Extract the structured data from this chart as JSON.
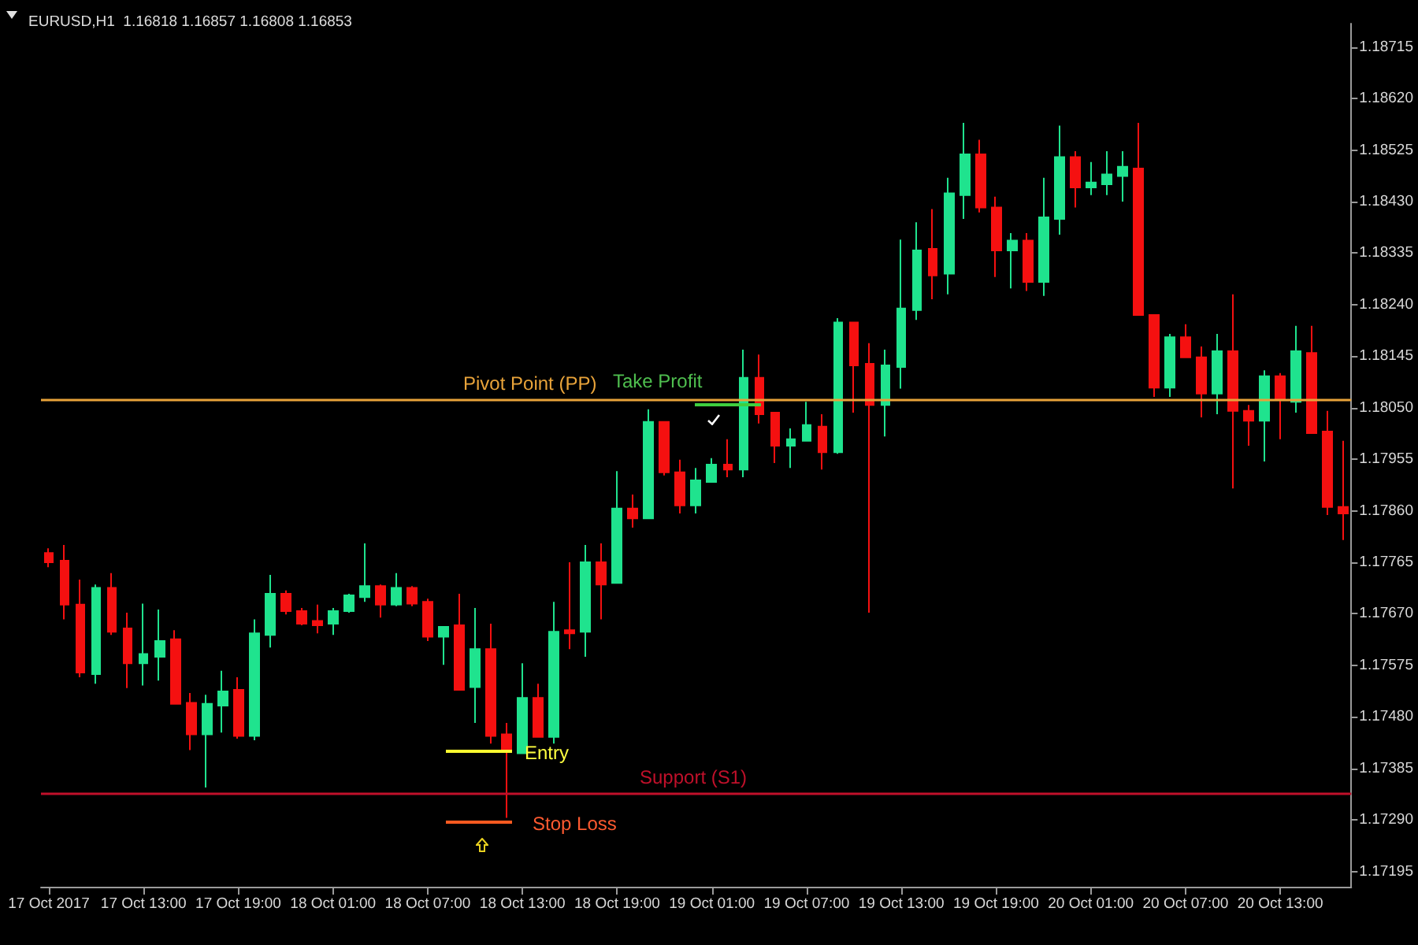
{
  "chart_data": {
    "type": "candlestick",
    "title": "EURUSD,H1  1.16818 1.16857 1.16808 1.16853",
    "categories": [
      "17 Oct 2017",
      null,
      null,
      null,
      null,
      null,
      "17 Oct 13:00",
      null,
      null,
      null,
      null,
      null,
      "17 Oct 19:00",
      null,
      null,
      null,
      null,
      null,
      "18 Oct 01:00",
      null,
      null,
      null,
      null,
      null,
      "18 Oct 07:00",
      null,
      null,
      null,
      null,
      null,
      "18 Oct 13:00",
      null,
      null,
      null,
      null,
      null,
      "18 Oct 19:00",
      null,
      null,
      null,
      null,
      null,
      "19 Oct 01:00",
      null,
      null,
      null,
      null,
      null,
      "19 Oct 07:00",
      null,
      null,
      null,
      null,
      null,
      "19 Oct 13:00",
      null,
      null,
      null,
      null,
      null,
      "19 Oct 19:00",
      null,
      null,
      null,
      null,
      null,
      "20 Oct 01:00",
      null,
      null,
      null,
      null,
      null,
      "20 Oct 07:00",
      null,
      null,
      null,
      null,
      null,
      "20 Oct 13:00",
      null,
      null,
      null,
      null
    ],
    "ohlc": [
      [
        1.17782,
        1.17791,
        1.17756,
        1.17765
      ],
      [
        1.17768,
        1.17797,
        1.1766,
        1.17687
      ],
      [
        1.17687,
        1.17733,
        1.17553,
        1.17562
      ],
      [
        1.17559,
        1.17724,
        1.17541,
        1.17718
      ],
      [
        1.17718,
        1.17745,
        1.17631,
        1.17637
      ],
      [
        1.17643,
        1.17672,
        1.17533,
        1.17579
      ],
      [
        1.17579,
        1.17689,
        1.17538,
        1.17596
      ],
      [
        1.17591,
        1.17678,
        1.17547,
        1.1762
      ],
      [
        1.17623,
        1.1764,
        1.17504,
        1.17504
      ],
      [
        1.17506,
        1.17524,
        1.17419,
        1.17448
      ],
      [
        1.17448,
        1.17521,
        1.1735,
        1.17504
      ],
      [
        1.17501,
        1.17565,
        1.17451,
        1.17527
      ],
      [
        1.1753,
        1.17553,
        1.1744,
        1.17445
      ],
      [
        1.17445,
        1.1766,
        1.17437,
        1.17634
      ],
      [
        1.17631,
        1.17742,
        1.17608,
        1.17707
      ],
      [
        1.17707,
        1.17713,
        1.17669,
        1.17675
      ],
      [
        1.17675,
        1.17681,
        1.17649,
        1.17652
      ],
      [
        1.17657,
        1.17687,
        1.17634,
        1.17649
      ],
      [
        1.17652,
        1.17681,
        1.17631,
        1.17675
      ],
      [
        1.17675,
        1.17707,
        1.17672,
        1.17704
      ],
      [
        1.17701,
        1.178,
        1.17692,
        1.17721
      ],
      [
        1.17721,
        1.17724,
        1.17663,
        1.17687
      ],
      [
        1.17687,
        1.17745,
        1.17684,
        1.17718
      ],
      [
        1.17718,
        1.17721,
        1.17684,
        1.17689
      ],
      [
        1.17692,
        1.17698,
        1.1762,
        1.17628
      ],
      [
        1.17628,
        1.17646,
        1.17576,
        1.17646
      ],
      [
        1.17649,
        1.17707,
        1.1753,
        1.1753
      ],
      [
        1.17535,
        1.17681,
        1.17469,
        1.17605
      ],
      [
        1.17605,
        1.17652,
        1.17431,
        1.17445
      ],
      [
        1.17448,
        1.17469,
        1.17294,
        1.17416
      ],
      [
        1.17413,
        1.17579,
        1.17413,
        1.17515
      ],
      [
        1.17515,
        1.17541,
        1.17443,
        1.17443
      ],
      [
        1.17443,
        1.17692,
        1.17431,
        1.17637
      ],
      [
        1.1764,
        1.17765,
        1.17605,
        1.17634
      ],
      [
        1.17637,
        1.17797,
        1.17591,
        1.17765
      ],
      [
        1.17765,
        1.178,
        1.1766,
        1.17724
      ],
      [
        1.17727,
        1.17933,
        1.17727,
        1.17864
      ],
      [
        1.17864,
        1.1789,
        1.17829,
        1.17846
      ],
      [
        1.17846,
        1.18047,
        1.17846,
        1.18024
      ],
      [
        1.18024,
        1.18024,
        1.17925,
        1.17931
      ],
      [
        1.17931,
        1.17954,
        1.17855,
        1.1787
      ],
      [
        1.1787,
        1.17939,
        1.17855,
        1.17916
      ],
      [
        1.17913,
        1.17957,
        1.17913,
        1.17945
      ],
      [
        1.17945,
        1.17992,
        1.17922,
        1.17936
      ],
      [
        1.17936,
        1.18157,
        1.17922,
        1.18105
      ],
      [
        1.18105,
        1.18148,
        1.18021,
        1.18038
      ],
      [
        1.18041,
        1.18041,
        1.17948,
        1.1798
      ],
      [
        1.1798,
        1.18012,
        1.17939,
        1.17992
      ],
      [
        1.17989,
        1.18061,
        1.17989,
        1.18018
      ],
      [
        1.18015,
        1.18038,
        1.17936,
        1.17968
      ],
      [
        1.17968,
        1.18215,
        1.17965,
        1.18207
      ],
      [
        1.18207,
        1.18207,
        1.18041,
        1.18128
      ],
      [
        1.18131,
        1.18169,
        1.17672,
        1.18055
      ],
      [
        1.18055,
        1.18157,
        1.17997,
        1.18128
      ],
      [
        1.18125,
        1.1836,
        1.18085,
        1.18233
      ],
      [
        1.1823,
        1.18392,
        1.18212,
        1.1834
      ],
      [
        1.18343,
        1.18416,
        1.1825,
        1.18294
      ],
      [
        1.18297,
        1.18474,
        1.18259,
        1.18445
      ],
      [
        1.18442,
        1.18575,
        1.18398,
        1.18517
      ],
      [
        1.18517,
        1.18544,
        1.1841,
        1.18419
      ],
      [
        1.18419,
        1.18439,
        1.18291,
        1.1834
      ],
      [
        1.1834,
        1.18372,
        1.1827,
        1.18358
      ],
      [
        1.18358,
        1.18372,
        1.18265,
        1.18282
      ],
      [
        1.18282,
        1.18474,
        1.18256,
        1.18401
      ],
      [
        1.18398,
        1.1857,
        1.18369,
        1.18512
      ],
      [
        1.18512,
        1.18523,
        1.18419,
        1.18456
      ],
      [
        1.18456,
        1.18503,
        1.18442,
        1.18465
      ],
      [
        1.18462,
        1.18523,
        1.18442,
        1.1848
      ],
      [
        1.18477,
        1.18523,
        1.1843,
        1.18494
      ],
      [
        1.18491,
        1.18575,
        1.18221,
        1.18221
      ],
      [
        1.18221,
        1.18221,
        1.1807,
        1.18087
      ],
      [
        1.18087,
        1.18186,
        1.1807,
        1.1818
      ],
      [
        1.1818,
        1.18204,
        1.18143,
        1.18143
      ],
      [
        1.18143,
        1.18163,
        1.18032,
        1.18076
      ],
      [
        1.18076,
        1.18186,
        1.18038,
        1.18154
      ],
      [
        1.18154,
        1.18259,
        1.17901,
        1.18044
      ],
      [
        1.18044,
        1.18055,
        1.1798,
        1.18026
      ],
      [
        1.18026,
        1.18119,
        1.17951,
        1.18108
      ],
      [
        1.18108,
        1.18114,
        1.17992,
        1.18067
      ],
      [
        1.18061,
        1.18201,
        1.18041,
        1.18154
      ],
      [
        1.18151,
        1.18201,
        1.18003,
        1.18003
      ],
      [
        1.18006,
        1.18044,
        1.17852,
        1.17867
      ],
      [
        1.17867,
        1.17989,
        1.17806,
        1.17855
      ]
    ],
    "colors": [
      "#f51010",
      "#f51010",
      "#f51010",
      "#1fe38e",
      "#f51010",
      "#f51010",
      "#1fe38e",
      "#1fe38e",
      "#f51010",
      "#f51010",
      "#1fe38e",
      "#1fe38e",
      "#f51010",
      "#1fe38e",
      "#1fe38e",
      "#f51010",
      "#f51010",
      "#f51010",
      "#1fe38e",
      "#1fe38e",
      "#1fe38e",
      "#f51010",
      "#1fe38e",
      "#f51010",
      "#f51010",
      "#1fe38e",
      "#f51010",
      "#1fe38e",
      "#f51010",
      "#f51010",
      "#1fe38e",
      "#f51010",
      "#1fe38e",
      "#f51010",
      "#1fe38e",
      "#f51010",
      "#1fe38e",
      "#f51010",
      "#1fe38e",
      "#f51010",
      "#f51010",
      "#1fe38e",
      "#1fe38e",
      "#f51010",
      "#1fe38e",
      "#f51010",
      "#f51010",
      "#1fe38e",
      "#1fe38e",
      "#f51010",
      "#1fe38e",
      "#f51010",
      "#f51010",
      "#1fe38e",
      "#1fe38e",
      "#1fe38e",
      "#f51010",
      "#1fe38e",
      "#1fe38e",
      "#f51010",
      "#f51010",
      "#1fe38e",
      "#f51010",
      "#1fe38e",
      "#1fe38e",
      "#f51010",
      "#1fe38e",
      "#1fe38e",
      "#1fe38e",
      "#f51010",
      "#f51010",
      "#1fe38e",
      "#f51010",
      "#f51010",
      "#1fe38e",
      "#f51010",
      "#f51010",
      "#1fe38e",
      "#f51010",
      "#1fe38e",
      "#f51010",
      "#f51010",
      "#f51010"
    ],
    "ylim": [
      1.17167,
      1.18758
    ],
    "yticks": [
      1.18715,
      {
        "value": 1.1862,
        "label": "1.18620"
      },
      1.18525,
      {
        "value": 1.1843,
        "label": "1.18430"
      },
      1.18335,
      {
        "value": 1.1824,
        "label": "1.18240"
      },
      1.18145,
      {
        "value": 1.1805,
        "label": "1.18050"
      },
      1.17955,
      {
        "value": 1.1786,
        "label": "1.17860"
      },
      1.17765,
      {
        "value": 1.1767,
        "label": "1.17670"
      },
      1.17575,
      {
        "value": 1.1748,
        "label": "1.17480"
      },
      1.17385,
      {
        "value": 1.1729,
        "label": "1.17290"
      },
      1.17195
    ],
    "ref_lines": [
      {
        "axis": "y",
        "value": 1.18065,
        "label": "Pivot Point (PP)",
        "color": "#e8a33a"
      },
      {
        "axis": "y",
        "value": 1.1734,
        "label": "Support (S1)",
        "color": "#c0102a"
      }
    ],
    "annotations": [
      "Take Profit",
      "Entry",
      "Stop Loss"
    ]
  }
}
